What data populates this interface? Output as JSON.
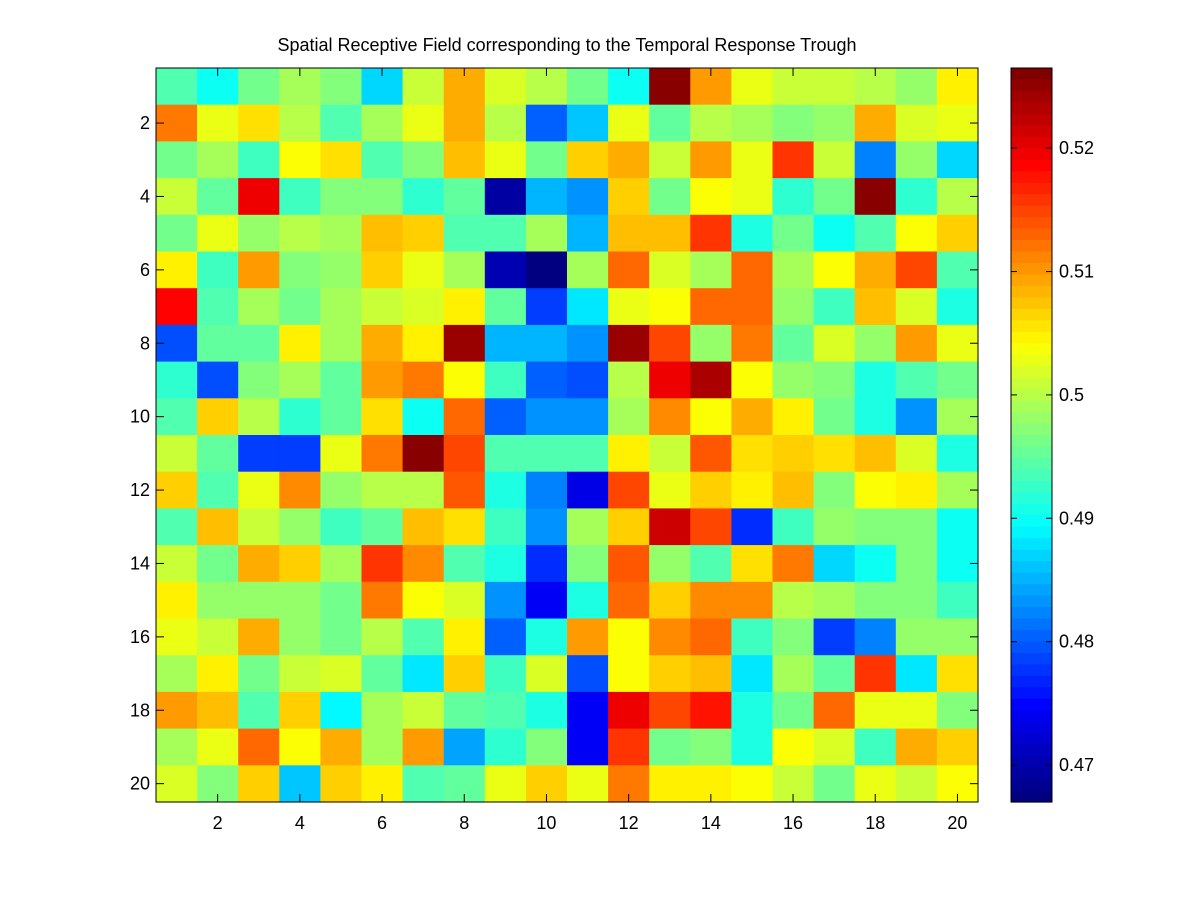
{
  "chart_data": {
    "type": "heatmap",
    "title": "Spatial Receptive Field corresponding to the Temporal Response Trough",
    "xlabel": "",
    "ylabel": "",
    "x_ticks": [
      2,
      4,
      6,
      8,
      10,
      12,
      14,
      16,
      18,
      20
    ],
    "y_ticks": [
      2,
      4,
      6,
      8,
      10,
      12,
      14,
      16,
      18,
      20
    ],
    "xlim": [
      0.5,
      20.5
    ],
    "ylim": [
      0.5,
      20.5
    ],
    "y_direction": "reverse",
    "colormap": "jet",
    "colorbar": {
      "position": "right",
      "range": [
        0.467,
        0.5265
      ],
      "ticks": [
        0.47,
        0.48,
        0.49,
        0.5,
        0.51,
        0.52
      ],
      "tick_labels": [
        "0.47",
        "0.48",
        "0.49",
        "0.5",
        "0.51",
        "0.52"
      ]
    },
    "values": [
      [
        0.494,
        0.49,
        0.496,
        0.499,
        0.497,
        0.487,
        0.501,
        0.509,
        0.502,
        0.5,
        0.496,
        0.49,
        0.526,
        0.51,
        0.503,
        0.501,
        0.501,
        0.5,
        0.498,
        0.505
      ],
      [
        0.512,
        0.503,
        0.506,
        0.5,
        0.494,
        0.499,
        0.503,
        0.509,
        0.5,
        0.48,
        0.486,
        0.503,
        0.495,
        0.5,
        0.499,
        0.497,
        0.498,
        0.509,
        0.502,
        0.503
      ],
      [
        0.496,
        0.499,
        0.493,
        0.504,
        0.506,
        0.494,
        0.497,
        0.508,
        0.503,
        0.496,
        0.507,
        0.509,
        0.501,
        0.51,
        0.503,
        0.516,
        0.501,
        0.482,
        0.498,
        0.487
      ],
      [
        0.501,
        0.495,
        0.52,
        0.493,
        0.497,
        0.497,
        0.492,
        0.495,
        0.469,
        0.485,
        0.483,
        0.507,
        0.496,
        0.504,
        0.503,
        0.492,
        0.496,
        0.526,
        0.492,
        0.5
      ],
      [
        0.496,
        0.503,
        0.498,
        0.5,
        0.499,
        0.508,
        0.507,
        0.494,
        0.494,
        0.499,
        0.485,
        0.508,
        0.508,
        0.516,
        0.491,
        0.496,
        0.49,
        0.494,
        0.504,
        0.507
      ],
      [
        0.505,
        0.493,
        0.51,
        0.497,
        0.498,
        0.507,
        0.503,
        0.499,
        0.47,
        0.467,
        0.499,
        0.513,
        0.502,
        0.499,
        0.513,
        0.499,
        0.504,
        0.509,
        0.515,
        0.494
      ],
      [
        0.519,
        0.494,
        0.499,
        0.496,
        0.499,
        0.501,
        0.502,
        0.505,
        0.495,
        0.478,
        0.488,
        0.503,
        0.504,
        0.513,
        0.513,
        0.498,
        0.493,
        0.508,
        0.502,
        0.491
      ],
      [
        0.479,
        0.495,
        0.495,
        0.505,
        0.499,
        0.509,
        0.505,
        0.525,
        0.485,
        0.485,
        0.483,
        0.525,
        0.515,
        0.498,
        0.512,
        0.495,
        0.502,
        0.498,
        0.51,
        0.503
      ],
      [
        0.492,
        0.479,
        0.497,
        0.499,
        0.495,
        0.51,
        0.512,
        0.504,
        0.493,
        0.48,
        0.479,
        0.5,
        0.52,
        0.524,
        0.504,
        0.498,
        0.497,
        0.491,
        0.494,
        0.496
      ],
      [
        0.494,
        0.507,
        0.5,
        0.492,
        0.495,
        0.506,
        0.49,
        0.513,
        0.48,
        0.483,
        0.483,
        0.499,
        0.511,
        0.504,
        0.509,
        0.505,
        0.496,
        0.491,
        0.483,
        0.499
      ],
      [
        0.501,
        0.495,
        0.478,
        0.478,
        0.503,
        0.512,
        0.526,
        0.515,
        0.494,
        0.494,
        0.494,
        0.505,
        0.501,
        0.514,
        0.506,
        0.507,
        0.506,
        0.508,
        0.502,
        0.491
      ],
      [
        0.507,
        0.494,
        0.503,
        0.511,
        0.498,
        0.5,
        0.5,
        0.514,
        0.491,
        0.482,
        0.473,
        0.515,
        0.503,
        0.507,
        0.505,
        0.508,
        0.497,
        0.504,
        0.505,
        0.499
      ],
      [
        0.494,
        0.508,
        0.501,
        0.498,
        0.493,
        0.495,
        0.508,
        0.506,
        0.493,
        0.483,
        0.499,
        0.507,
        0.522,
        0.515,
        0.477,
        0.493,
        0.498,
        0.497,
        0.497,
        0.49
      ],
      [
        0.501,
        0.496,
        0.509,
        0.507,
        0.499,
        0.516,
        0.511,
        0.494,
        0.491,
        0.477,
        0.497,
        0.514,
        0.498,
        0.494,
        0.506,
        0.512,
        0.487,
        0.49,
        0.497,
        0.49
      ],
      [
        0.505,
        0.498,
        0.498,
        0.498,
        0.496,
        0.512,
        0.504,
        0.502,
        0.483,
        0.474,
        0.491,
        0.513,
        0.507,
        0.511,
        0.511,
        0.5,
        0.499,
        0.497,
        0.497,
        0.493
      ],
      [
        0.503,
        0.501,
        0.509,
        0.498,
        0.496,
        0.5,
        0.494,
        0.505,
        0.48,
        0.491,
        0.51,
        0.504,
        0.511,
        0.513,
        0.493,
        0.497,
        0.478,
        0.482,
        0.498,
        0.498
      ],
      [
        0.499,
        0.505,
        0.496,
        0.501,
        0.502,
        0.495,
        0.488,
        0.507,
        0.493,
        0.502,
        0.479,
        0.504,
        0.507,
        0.508,
        0.488,
        0.499,
        0.495,
        0.516,
        0.488,
        0.506
      ],
      [
        0.51,
        0.508,
        0.494,
        0.507,
        0.489,
        0.499,
        0.501,
        0.495,
        0.494,
        0.491,
        0.474,
        0.52,
        0.515,
        0.518,
        0.491,
        0.496,
        0.513,
        0.503,
        0.503,
        0.497
      ],
      [
        0.499,
        0.503,
        0.513,
        0.504,
        0.509,
        0.499,
        0.51,
        0.484,
        0.492,
        0.497,
        0.474,
        0.516,
        0.496,
        0.497,
        0.491,
        0.504,
        0.502,
        0.493,
        0.509,
        0.507
      ],
      [
        0.502,
        0.497,
        0.507,
        0.486,
        0.507,
        0.505,
        0.494,
        0.495,
        0.503,
        0.507,
        0.503,
        0.512,
        0.505,
        0.505,
        0.504,
        0.501,
        0.496,
        0.503,
        0.501,
        0.504
      ]
    ]
  }
}
